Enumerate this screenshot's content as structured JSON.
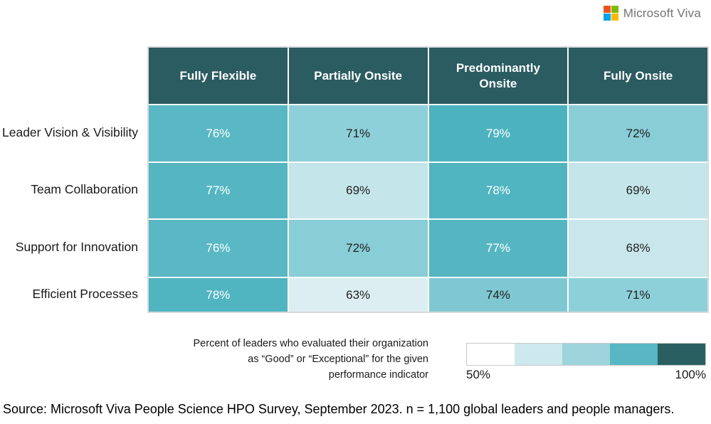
{
  "brand": {
    "name": "Microsoft Viva",
    "logo_colors": {
      "red": "#f25022",
      "green": "#7fba00",
      "blue": "#00a4ef",
      "yellow": "#ffb900"
    },
    "text_color": "#737373"
  },
  "table": {
    "header_bg": "#2b5c61",
    "columns": [
      "Fully Flexible",
      "Partially Onsite",
      "Predominantly Onsite",
      "Fully Onsite"
    ],
    "rows": [
      {
        "label": "Leader Vision & Visibility",
        "cells": [
          {
            "value": "76%",
            "bg": "#59b8c4",
            "fg": "#ffffff"
          },
          {
            "value": "71%",
            "bg": "#8ed0d9",
            "fg": "#1f1f1f"
          },
          {
            "value": "79%",
            "bg": "#4db2bf",
            "fg": "#ffffff"
          },
          {
            "value": "72%",
            "bg": "#89cdd7",
            "fg": "#1f1f1f"
          }
        ]
      },
      {
        "label": "Team Collaboration",
        "cells": [
          {
            "value": "77%",
            "bg": "#55b6c2",
            "fg": "#ffffff"
          },
          {
            "value": "69%",
            "bg": "#c4e5ea",
            "fg": "#1f1f1f"
          },
          {
            "value": "78%",
            "bg": "#51b4c1",
            "fg": "#ffffff"
          },
          {
            "value": "69%",
            "bg": "#c4e5ea",
            "fg": "#1f1f1f"
          }
        ]
      },
      {
        "label": "Support for Innovation",
        "cells": [
          {
            "value": "76%",
            "bg": "#59b8c4",
            "fg": "#ffffff"
          },
          {
            "value": "72%",
            "bg": "#89cdd7",
            "fg": "#1f1f1f"
          },
          {
            "value": "77%",
            "bg": "#55b6c2",
            "fg": "#ffffff"
          },
          {
            "value": "68%",
            "bg": "#c9e7eb",
            "fg": "#1f1f1f"
          }
        ]
      },
      {
        "label": "Efficient Processes",
        "cells": [
          {
            "value": "78%",
            "bg": "#51b4c1",
            "fg": "#ffffff"
          },
          {
            "value": "63%",
            "bg": "#dceef1",
            "fg": "#1f1f1f"
          },
          {
            "value": "74%",
            "bg": "#7fc8d2",
            "fg": "#1f1f1f"
          },
          {
            "value": "71%",
            "bg": "#8ed0d9",
            "fg": "#1f1f1f"
          }
        ]
      }
    ]
  },
  "caption": {
    "line1": "Percent of leaders who evaluated their organization",
    "line2": "as “Good” or “Exceptional” for the given",
    "line3": "performance indicator"
  },
  "legend": {
    "swatches": [
      "#ffffff",
      "#cde9ed",
      "#9ed4db",
      "#58b7c3",
      "#2a5f62"
    ],
    "min_label": "50%",
    "max_label": "100%"
  },
  "source": "Source: Microsoft Viva People Science HPO Survey, September 2023. n = 1,100 global leaders and people managers.",
  "chart_data": {
    "type": "heatmap",
    "x_categories": [
      "Fully Flexible",
      "Partially Onsite",
      "Predominantly Onsite",
      "Fully Onsite"
    ],
    "y_categories": [
      "Leader Vision & Visibility",
      "Team Collaboration",
      "Support for Innovation",
      "Efficient Processes"
    ],
    "values_percent": [
      [
        76,
        71,
        79,
        72
      ],
      [
        77,
        69,
        78,
        69
      ],
      [
        76,
        72,
        77,
        68
      ],
      [
        78,
        63,
        74,
        71
      ]
    ],
    "scale": {
      "min": 50,
      "max": 100,
      "min_label": "50%",
      "max_label": "100%"
    },
    "legend_position": "bottom-right",
    "grid": false,
    "note": "Percent of leaders who evaluated their organization as “Good” or “Exceptional” for the given performance indicator",
    "source": "Source: Microsoft Viva People Science HPO Survey, September 2023. n = 1,100 global leaders and people managers."
  }
}
